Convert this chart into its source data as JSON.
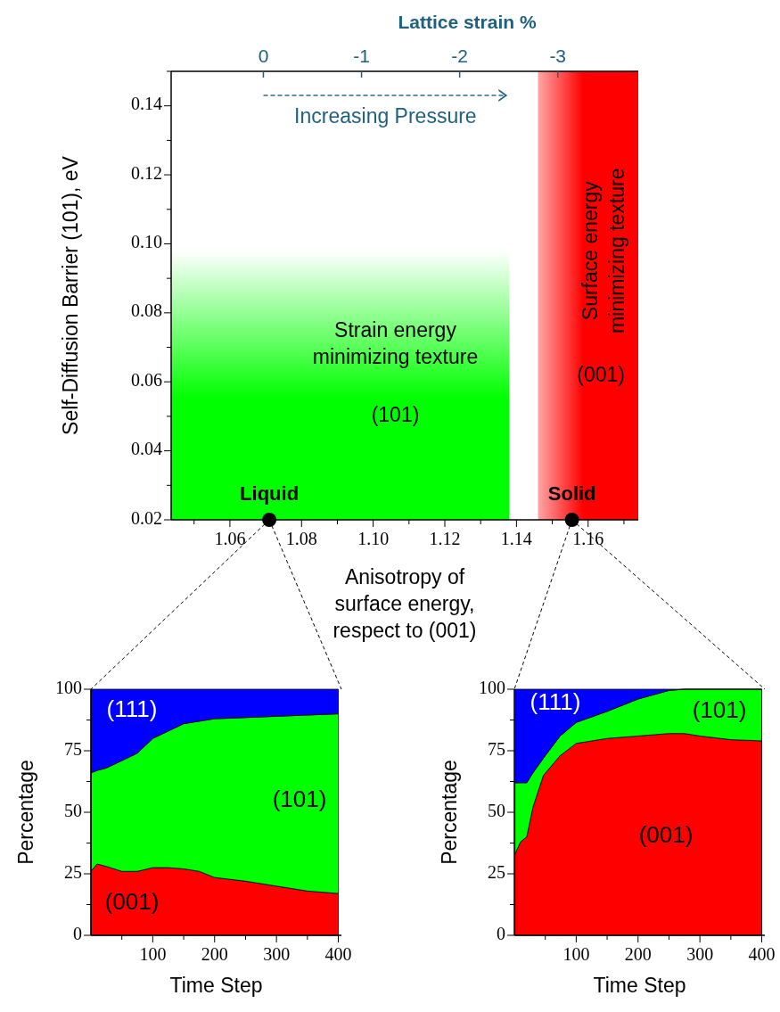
{
  "chart_data": [
    {
      "type": "area",
      "xlabel": "Anisotropy of\nsurface energy,\nrespect to (001)",
      "ylabel": "Self-Diffusion Barrier (101), eV",
      "x2label": "Lattice strain %",
      "xlim": [
        1.0436,
        1.174
      ],
      "ylim": [
        0.02,
        0.15
      ],
      "xticks": [
        {
          "value": 1.05,
          "label": null
        },
        1.06,
        {
          "value": 1.07,
          "label": null
        },
        1.08,
        {
          "value": 1.09,
          "label": null
        },
        {
          "value": 1.1,
          "label": "1.10"
        },
        {
          "value": 1.11,
          "label": null
        },
        1.12,
        {
          "value": 1.13,
          "label": null
        },
        1.14,
        {
          "value": 1.15,
          "label": null
        },
        1.16,
        {
          "value": 1.17,
          "label": null
        }
      ],
      "yticks": [
        0.02,
        {
          "value": 0.03,
          "label": null
        },
        0.04,
        {
          "value": 0.05,
          "label": null
        },
        0.06,
        {
          "value": 0.07,
          "label": null
        },
        0.08,
        {
          "value": 0.09,
          "label": null
        },
        {
          "value": 0.1,
          "label": "0.10"
        },
        {
          "value": 0.11,
          "label": null
        },
        0.12,
        {
          "value": 0.13,
          "label": null
        },
        0.14,
        {
          "value": 0.15,
          "label": null
        }
      ],
      "x2lim": [
        0.94,
        -3.82
      ],
      "x2ticks": [
        0,
        -1,
        -2,
        -3
      ],
      "series": [
        {
          "color": "#00ff00",
          "x": [
            1.0436,
            1.138
          ],
          "values": [
            0.098,
            0.098
          ]
        },
        {
          "color": "#ff0000",
          "x": [
            1.146,
            1.174
          ],
          "values": [
            0.15,
            0.15
          ]
        },
        {
          "type": "scatter",
          "color": "#000000",
          "marker": "circle",
          "x": [
            1.071,
            1.1555
          ],
          "values": [
            0.02,
            0.02
          ]
        }
      ],
      "annotations": [
        "Increasing Pressure",
        "Strain energy\nminimizing texture",
        "(101)",
        "Surface energy\nminimizing texture",
        "(001)",
        {
          "text": "Liquid",
          "x": 1.071,
          "y": 0.02
        },
        {
          "text": "Solid",
          "x": 1.1555,
          "y": 0.02
        }
      ]
    },
    {
      "type": "area",
      "stacked": true,
      "xlabel": "Time Step",
      "ylabel": "Percentage",
      "xlim": [
        0,
        405
      ],
      "ylim": [
        0,
        100
      ],
      "xticks": [
        {
          "value": 50,
          "label": null
        },
        100,
        {
          "value": 150,
          "label": null
        },
        200,
        {
          "value": 250,
          "label": null
        },
        300,
        {
          "value": 350,
          "label": null
        },
        400
      ],
      "yticks": [
        0,
        {
          "value": 12.5,
          "label": null
        },
        25,
        {
          "value": 37.5,
          "label": null
        },
        50,
        {
          "value": 62.5,
          "label": null
        },
        75,
        {
          "value": 87.5,
          "label": null
        },
        100
      ],
      "x": [
        0,
        10,
        25,
        50,
        75,
        100,
        125,
        150,
        175,
        200,
        250,
        300,
        350,
        400
      ],
      "series": [
        {
          "name": "(001)",
          "color": "#ff0000",
          "values": [
            26,
            29,
            28,
            26,
            26,
            27.5,
            27.5,
            27,
            26,
            23.5,
            22,
            20,
            18,
            17
          ]
        },
        {
          "name": "(101)",
          "color": "#00ff00",
          "values": [
            40,
            38,
            40,
            45,
            48,
            52.5,
            55.5,
            59,
            61,
            64.5,
            66.5,
            69,
            71.5,
            73
          ]
        },
        {
          "name": "(111)",
          "color": "#0000ff",
          "values": [
            34,
            33,
            32,
            29,
            26,
            20,
            17,
            14,
            13,
            12,
            11.5,
            11,
            10.5,
            10
          ]
        }
      ]
    },
    {
      "type": "area",
      "stacked": true,
      "xlabel": "Time Step",
      "ylabel": "Percentage",
      "xlim": [
        0,
        405
      ],
      "ylim": [
        0,
        100
      ],
      "xticks": [
        {
          "value": 50,
          "label": null
        },
        100,
        {
          "value": 150,
          "label": null
        },
        200,
        {
          "value": 250,
          "label": null
        },
        300,
        {
          "value": 350,
          "label": null
        },
        400
      ],
      "yticks": [
        0,
        {
          "value": 12.5,
          "label": null
        },
        25,
        {
          "value": 37.5,
          "label": null
        },
        50,
        {
          "value": 62.5,
          "label": null
        },
        75,
        {
          "value": 87.5,
          "label": null
        },
        100
      ],
      "x": [
        1,
        10,
        20,
        30,
        47,
        74,
        100,
        150,
        200,
        250,
        275,
        300,
        350,
        400
      ],
      "series": [
        {
          "name": "(001)",
          "color": "#ff0000",
          "values": [
            33,
            38,
            40,
            52,
            65,
            73,
            78,
            80,
            81,
            82,
            82,
            81,
            79.5,
            79
          ]
        },
        {
          "name": "(101)",
          "color": "#00ff00",
          "values": [
            29,
            24,
            22,
            14,
            7,
            8,
            8.5,
            11,
            15,
            17.5,
            18,
            19,
            20.5,
            21
          ]
        },
        {
          "name": "(111)",
          "color": "#0000ff",
          "values": [
            38,
            38,
            38,
            34,
            28,
            19,
            13.5,
            9,
            4,
            0.5,
            0,
            0,
            0,
            0
          ]
        }
      ]
    }
  ]
}
